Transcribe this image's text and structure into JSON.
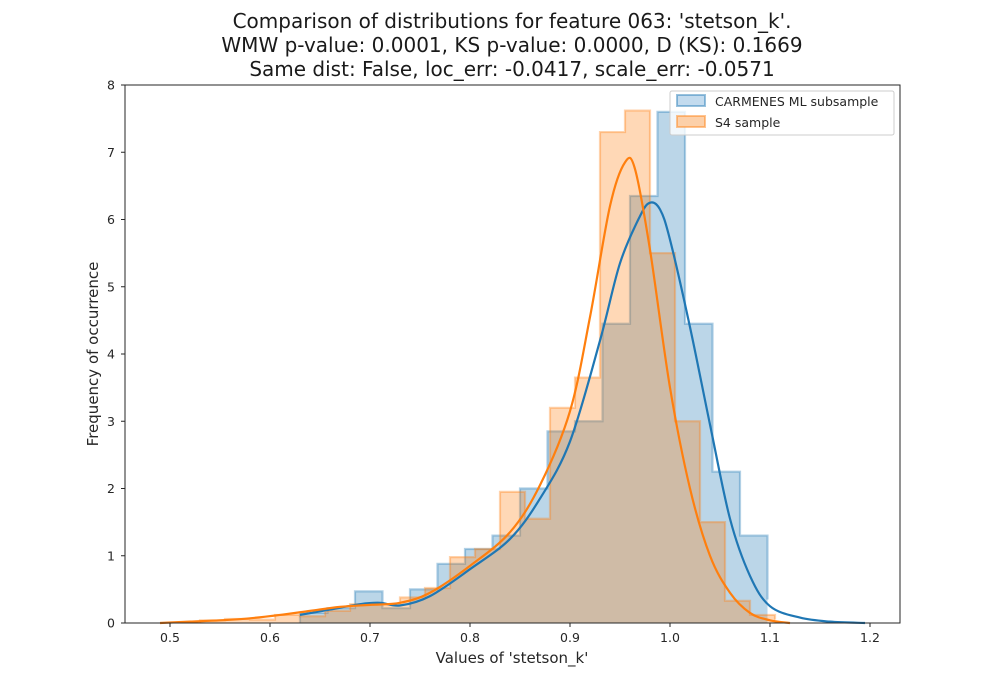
{
  "chart_data": {
    "type": "histogram",
    "title_lines": [
      "Comparison of distributions for feature 063: 'stetson_k'.",
      "WMW p-value: 0.0001, KS p-value: 0.0000, D (KS): 0.1669",
      "Same dist: False, loc_err: -0.0417, scale_err: -0.0571"
    ],
    "xlabel": "Values of 'stetson_k'",
    "ylabel": "Frequency of occurrence",
    "xlim": [
      0.455,
      1.23
    ],
    "ylim": [
      0,
      8
    ],
    "xticks": [
      "0.5",
      "0.6",
      "0.7",
      "0.8",
      "0.9",
      "1.0",
      "1.1",
      "1.2"
    ],
    "yticks": [
      "0",
      "1",
      "2",
      "3",
      "4",
      "5",
      "6",
      "7",
      "8"
    ],
    "grid": false,
    "legend_position": "top-right",
    "series": [
      {
        "name": "CARMENES ML subsample",
        "color": "#1f77b4",
        "fill": "#c3dbee",
        "bin_edges": [
          0.63,
          0.6575,
          0.685,
          0.7125,
          0.74,
          0.7675,
          0.795,
          0.8225,
          0.85,
          0.8775,
          0.905,
          0.9325,
          0.96,
          0.9875,
          1.015,
          1.0425,
          1.07,
          1.0975
        ],
        "counts": [
          0.15,
          0.22,
          0.47,
          0.22,
          0.5,
          0.88,
          1.1,
          1.3,
          2.0,
          2.85,
          3.0,
          4.45,
          6.35,
          7.6,
          4.45,
          2.25,
          1.3,
          0.35
        ],
        "kde_x": [
          0.63,
          0.66,
          0.69,
          0.71,
          0.73,
          0.76,
          0.8,
          0.84,
          0.87,
          0.9,
          0.93,
          0.95,
          0.97,
          0.98,
          0.99,
          1.0,
          1.02,
          1.04,
          1.06,
          1.08,
          1.1,
          1.13,
          1.16,
          1.195
        ],
        "kde_y": [
          0.12,
          0.2,
          0.28,
          0.3,
          0.26,
          0.4,
          0.8,
          1.25,
          1.85,
          2.7,
          4.2,
          5.35,
          6.05,
          6.25,
          6.15,
          5.7,
          4.4,
          2.95,
          1.55,
          0.7,
          0.25,
          0.08,
          0.02,
          0.0
        ]
      },
      {
        "name": "S4 sample",
        "color": "#ff7f0e",
        "fill": "#fcd0a9",
        "bin_edges": [
          0.53,
          0.555,
          0.58,
          0.605,
          0.63,
          0.655,
          0.68,
          0.705,
          0.73,
          0.755,
          0.78,
          0.805,
          0.83,
          0.855,
          0.88,
          0.905,
          0.93,
          0.955,
          0.98,
          1.005,
          1.03,
          1.055,
          1.08,
          1.105
        ],
        "counts": [
          0.04,
          0.06,
          0.05,
          0.12,
          0.1,
          0.18,
          0.28,
          0.28,
          0.38,
          0.52,
          0.98,
          1.1,
          1.95,
          1.55,
          3.2,
          3.65,
          7.3,
          7.62,
          5.5,
          3.0,
          1.5,
          0.33,
          0.12,
          0.05
        ],
        "kde_x": [
          0.49,
          0.52,
          0.55,
          0.58,
          0.61,
          0.64,
          0.67,
          0.7,
          0.73,
          0.76,
          0.8,
          0.84,
          0.87,
          0.9,
          0.92,
          0.94,
          0.955,
          0.965,
          0.98,
          1.0,
          1.02,
          1.04,
          1.06,
          1.08,
          1.1,
          1.12
        ],
        "kde_y": [
          0.0,
          0.02,
          0.04,
          0.07,
          0.12,
          0.18,
          0.24,
          0.27,
          0.3,
          0.45,
          0.85,
          1.35,
          2.05,
          3.15,
          4.55,
          6.2,
          6.85,
          6.75,
          5.55,
          3.5,
          2.0,
          1.0,
          0.45,
          0.15,
          0.04,
          0.0
        ]
      }
    ]
  }
}
